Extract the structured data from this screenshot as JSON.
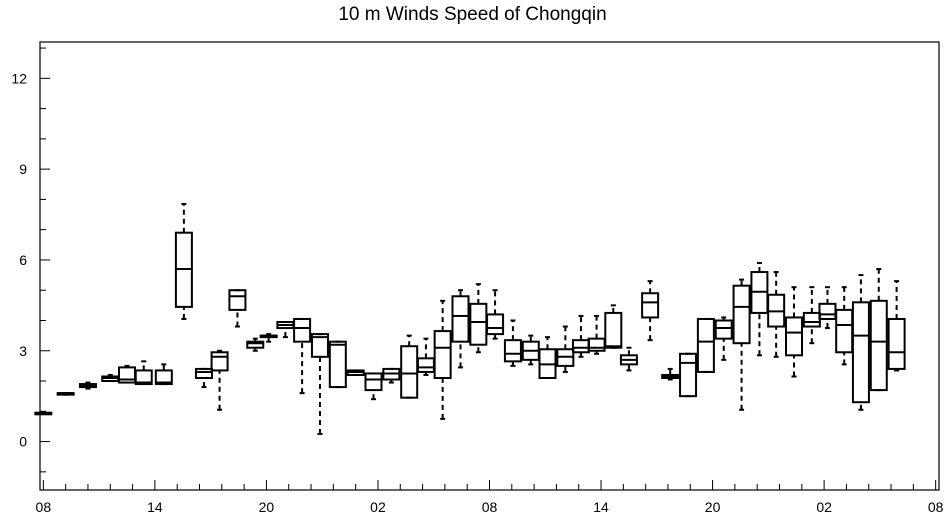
{
  "chart_data": {
    "type": "box",
    "title": "10 m Winds Speed of Chongqin",
    "xlabel": "",
    "ylabel": "",
    "ylim": [
      -1.6,
      13.2
    ],
    "yticks": [
      0,
      3,
      6,
      9,
      12
    ],
    "yminor_step": 1,
    "x_range": [
      -0.3,
      80.3
    ],
    "xticks": [
      {
        "pos": 0,
        "label": "08"
      },
      {
        "pos": 10,
        "label": "14"
      },
      {
        "pos": 20,
        "label": "20"
      },
      {
        "pos": 30,
        "label": "02"
      },
      {
        "pos": 40,
        "label": "08"
      },
      {
        "pos": 50,
        "label": "14"
      },
      {
        "pos": 60,
        "label": "20"
      },
      {
        "pos": 70,
        "label": "02"
      },
      {
        "pos": 80,
        "label": "08"
      }
    ],
    "xminor_step": 2,
    "boxes": [
      {
        "x": 0,
        "min": 0.95,
        "q1": 0.95,
        "median": 0.95,
        "q3": 0.95,
        "max": 0.95
      },
      {
        "x": 2,
        "min": 1.55,
        "q1": 1.55,
        "median": 1.6,
        "q3": 1.6,
        "max": 1.6
      },
      {
        "x": 4,
        "min": 1.75,
        "q1": 1.8,
        "median": 1.85,
        "q3": 1.9,
        "max": 1.95
      },
      {
        "x": 6,
        "min": 2.0,
        "q1": 2.0,
        "median": 2.1,
        "q3": 2.15,
        "max": 2.2
      },
      {
        "x": 7.5,
        "min": 1.95,
        "q1": 1.95,
        "median": 2.05,
        "q3": 2.45,
        "max": 2.5
      },
      {
        "x": 9,
        "min": 1.9,
        "q1": 1.9,
        "median": 1.95,
        "q3": 2.35,
        "max": 2.65
      },
      {
        "x": 10.8,
        "min": 1.9,
        "q1": 1.9,
        "median": 1.95,
        "q3": 2.35,
        "max": 2.55
      },
      {
        "x": 12.6,
        "min": 4.05,
        "q1": 4.45,
        "median": 5.7,
        "q3": 6.9,
        "max": 7.85
      },
      {
        "x": 14.4,
        "min": 1.8,
        "q1": 2.1,
        "median": 2.3,
        "q3": 2.4,
        "max": 2.4
      },
      {
        "x": 15.8,
        "min": 1.05,
        "q1": 2.35,
        "median": 2.8,
        "q3": 2.95,
        "max": 3.0
      },
      {
        "x": 17.4,
        "min": 3.8,
        "q1": 4.35,
        "median": 4.8,
        "q3": 5.0,
        "max": 5.0
      },
      {
        "x": 19.0,
        "min": 3.0,
        "q1": 3.1,
        "median": 3.25,
        "q3": 3.3,
        "max": 3.4
      },
      {
        "x": 20.2,
        "min": 3.3,
        "q1": 3.45,
        "median": 3.5,
        "q3": 3.5,
        "max": 3.55
      },
      {
        "x": 21.7,
        "min": 3.45,
        "q1": 3.75,
        "median": 3.85,
        "q3": 3.95,
        "max": 3.95
      },
      {
        "x": 23.2,
        "min": 1.6,
        "q1": 3.3,
        "median": 3.75,
        "q3": 4.05,
        "max": 4.05
      },
      {
        "x": 24.8,
        "min": 0.25,
        "q1": 2.8,
        "median": 3.45,
        "q3": 3.55,
        "max": 3.55
      },
      {
        "x": 26.4,
        "min": 1.8,
        "q1": 1.8,
        "median": 3.2,
        "q3": 3.3,
        "max": 3.3
      },
      {
        "x": 28.0,
        "min": 2.2,
        "q1": 2.2,
        "median": 2.3,
        "q3": 2.35,
        "max": 2.35
      },
      {
        "x": 29.6,
        "min": 1.4,
        "q1": 1.7,
        "median": 2.05,
        "q3": 2.25,
        "max": 2.25
      },
      {
        "x": 31.2,
        "min": 1.95,
        "q1": 2.05,
        "median": 2.25,
        "q3": 2.4,
        "max": 2.4
      },
      {
        "x": 32.8,
        "min": 1.45,
        "q1": 1.45,
        "median": 2.25,
        "q3": 3.15,
        "max": 3.5
      },
      {
        "x": 34.3,
        "min": 2.2,
        "q1": 2.3,
        "median": 2.45,
        "q3": 2.75,
        "max": 3.4
      },
      {
        "x": 35.8,
        "min": 0.75,
        "q1": 2.1,
        "median": 3.1,
        "q3": 3.65,
        "max": 4.65
      },
      {
        "x": 37.4,
        "min": 2.45,
        "q1": 3.3,
        "median": 4.15,
        "q3": 4.8,
        "max": 5.0
      },
      {
        "x": 39.0,
        "min": 2.95,
        "q1": 3.2,
        "median": 3.95,
        "q3": 4.55,
        "max": 5.2
      },
      {
        "x": 40.5,
        "min": 3.4,
        "q1": 3.55,
        "median": 3.75,
        "q3": 4.2,
        "max": 5.0
      },
      {
        "x": 42.1,
        "min": 2.5,
        "q1": 2.65,
        "median": 2.9,
        "q3": 3.35,
        "max": 4.0
      },
      {
        "x": 43.7,
        "min": 2.55,
        "q1": 2.7,
        "median": 3.0,
        "q3": 3.3,
        "max": 3.5
      },
      {
        "x": 45.2,
        "min": 2.1,
        "q1": 2.1,
        "median": 2.55,
        "q3": 3.05,
        "max": 3.45
      },
      {
        "x": 46.8,
        "min": 2.3,
        "q1": 2.5,
        "median": 2.8,
        "q3": 3.05,
        "max": 3.8
      },
      {
        "x": 48.2,
        "min": 2.8,
        "q1": 2.95,
        "median": 3.1,
        "q3": 3.35,
        "max": 4.15
      },
      {
        "x": 49.6,
        "min": 2.9,
        "q1": 3.0,
        "median": 3.1,
        "q3": 3.4,
        "max": 4.15
      },
      {
        "x": 51.1,
        "min": 3.1,
        "q1": 3.1,
        "median": 3.15,
        "q3": 4.25,
        "max": 4.5
      },
      {
        "x": 52.5,
        "min": 2.35,
        "q1": 2.55,
        "median": 2.7,
        "q3": 2.85,
        "max": 3.1
      },
      {
        "x": 54.4,
        "min": 3.35,
        "q1": 4.1,
        "median": 4.6,
        "q3": 4.9,
        "max": 5.3
      },
      {
        "x": 56.2,
        "min": 2.05,
        "q1": 2.1,
        "median": 2.15,
        "q3": 2.2,
        "max": 2.4
      },
      {
        "x": 57.8,
        "min": 1.5,
        "q1": 1.5,
        "median": 2.6,
        "q3": 2.9,
        "max": 2.9
      },
      {
        "x": 59.4,
        "min": 2.3,
        "q1": 2.3,
        "median": 3.3,
        "q3": 4.05,
        "max": 4.05
      },
      {
        "x": 61.0,
        "min": 2.7,
        "q1": 3.4,
        "median": 3.75,
        "q3": 4.0,
        "max": 4.1
      },
      {
        "x": 62.6,
        "min": 1.05,
        "q1": 3.25,
        "median": 4.45,
        "q3": 5.15,
        "max": 5.35
      },
      {
        "x": 64.2,
        "min": 2.85,
        "q1": 4.25,
        "median": 4.95,
        "q3": 5.6,
        "max": 5.9
      },
      {
        "x": 65.7,
        "min": 2.8,
        "q1": 3.8,
        "median": 4.3,
        "q3": 4.85,
        "max": 5.6
      },
      {
        "x": 67.3,
        "min": 2.15,
        "q1": 2.85,
        "median": 3.6,
        "q3": 4.1,
        "max": 5.1
      },
      {
        "x": 68.9,
        "min": 3.25,
        "q1": 3.8,
        "median": 3.95,
        "q3": 4.25,
        "max": 5.1
      },
      {
        "x": 70.3,
        "min": 3.75,
        "q1": 4.05,
        "median": 4.2,
        "q3": 4.55,
        "max": 5.1
      },
      {
        "x": 71.8,
        "min": 2.55,
        "q1": 2.95,
        "median": 3.85,
        "q3": 4.35,
        "max": 5.1
      },
      {
        "x": 73.3,
        "min": 1.05,
        "q1": 1.3,
        "median": 3.5,
        "q3": 4.6,
        "max": 5.5
      },
      {
        "x": 74.9,
        "min": 1.7,
        "q1": 1.7,
        "median": 3.3,
        "q3": 4.65,
        "max": 5.7
      },
      {
        "x": 76.5,
        "min": 2.35,
        "q1": 2.4,
        "median": 2.95,
        "q3": 4.05,
        "max": 5.3
      }
    ]
  }
}
